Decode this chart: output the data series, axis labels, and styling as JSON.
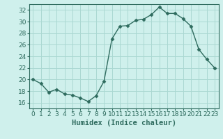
{
  "x": [
    0,
    1,
    2,
    3,
    4,
    5,
    6,
    7,
    8,
    9,
    10,
    11,
    12,
    13,
    14,
    15,
    16,
    17,
    18,
    19,
    20,
    21,
    22,
    23
  ],
  "y": [
    20,
    19.3,
    17.8,
    18.3,
    17.5,
    17.3,
    16.8,
    16.2,
    17.2,
    19.7,
    27.0,
    29.2,
    29.3,
    30.2,
    30.4,
    31.2,
    32.5,
    31.4,
    31.4,
    30.5,
    29.2,
    25.2,
    23.5,
    22.0
  ],
  "line_color": "#2e6b5e",
  "marker": "D",
  "marker_size": 2.5,
  "bg_color": "#cff0ec",
  "grid_color": "#aad8d2",
  "xlabel": "Humidex (Indice chaleur)",
  "ylim": [
    15,
    33
  ],
  "yticks": [
    16,
    18,
    20,
    22,
    24,
    26,
    28,
    30,
    32
  ],
  "xticks": [
    0,
    1,
    2,
    3,
    4,
    5,
    6,
    7,
    8,
    9,
    10,
    11,
    12,
    13,
    14,
    15,
    16,
    17,
    18,
    19,
    20,
    21,
    22,
    23
  ],
  "xlabel_fontsize": 7.5,
  "tick_fontsize": 6.5,
  "linewidth": 1.0
}
